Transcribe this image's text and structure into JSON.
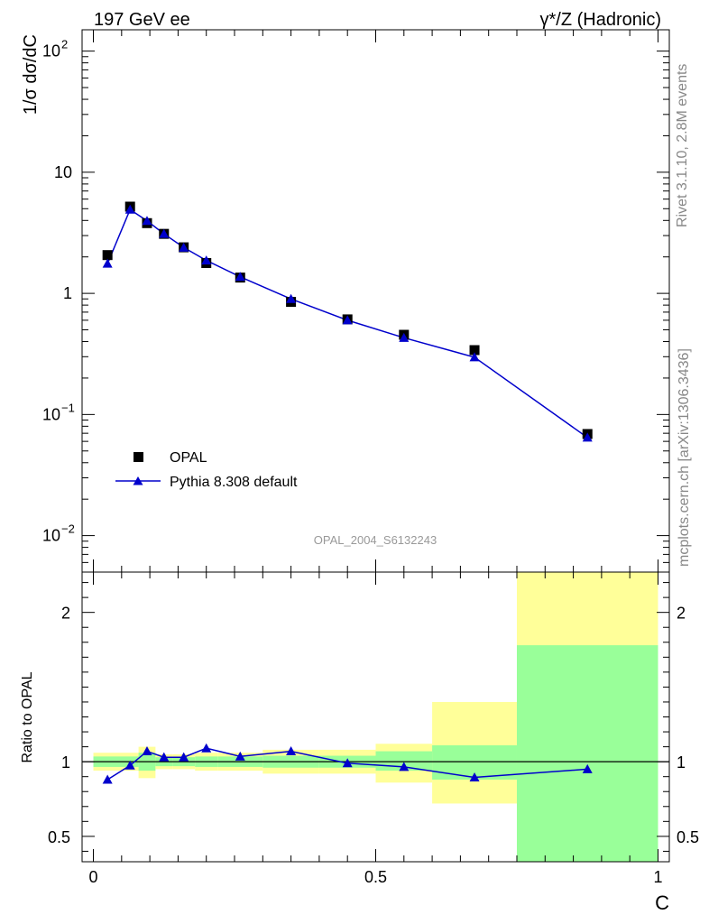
{
  "header": {
    "energy_label": "197 GeV ee",
    "process_label": "γ*/Z (Hadronic)"
  },
  "side": {
    "rivet_label": "Rivet 3.1.10,  2.8M events",
    "source_label": "mcplots.cern.ch [arXiv:1306.3436]"
  },
  "watermark": "OPAL_2004_S6132243",
  "colors": {
    "data": "#000000",
    "mc": "#0000cc",
    "band_inner": "#99ff99",
    "band_outer": "#ffff99",
    "ref_line": "#000000"
  },
  "chart_data": [
    {
      "type": "scatter",
      "title": "",
      "xlabel": "C",
      "ylabel": "1/σ dσ/dC",
      "yscale": "log",
      "xlim": [
        -0.02,
        1.02
      ],
      "ylim": [
        0.005,
        150
      ],
      "yticks": [
        {
          "value": 100,
          "base": "10",
          "exp": "2"
        },
        {
          "value": 10,
          "base": "10",
          "exp": ""
        },
        {
          "value": 1,
          "base": "1",
          "exp": ""
        },
        {
          "value": 0.1,
          "base": "10",
          "exp": "−1"
        },
        {
          "value": 0.01,
          "base": "10",
          "exp": "−2"
        }
      ],
      "legend": {
        "placement": "lower-left",
        "entries": [
          "OPAL",
          "Pythia 8.308 default"
        ]
      },
      "series": [
        {
          "name": "OPAL",
          "marker": "square",
          "x": [
            0.025,
            0.065,
            0.095,
            0.125,
            0.16,
            0.2,
            0.26,
            0.35,
            0.45,
            0.55,
            0.675,
            0.875
          ],
          "y": [
            2.07,
            5.2,
            3.8,
            3.1,
            2.4,
            1.78,
            1.35,
            0.85,
            0.61,
            0.455,
            0.34,
            0.069
          ]
        },
        {
          "name": "Pythia 8.308 default",
          "marker": "triangle",
          "x": [
            0.025,
            0.065,
            0.095,
            0.125,
            0.16,
            0.2,
            0.26,
            0.35,
            0.45,
            0.55,
            0.675,
            0.875
          ],
          "y": [
            1.76,
            4.92,
            3.97,
            3.1,
            2.39,
            1.87,
            1.37,
            0.9,
            0.6,
            0.43,
            0.297,
            0.0645
          ]
        }
      ]
    },
    {
      "type": "line",
      "title": "",
      "xlabel": "C",
      "ylabel": "Ratio to OPAL",
      "xlim": [
        -0.02,
        1.02
      ],
      "ylim": [
        0.33,
        2.27
      ],
      "xticks": [
        0,
        0.5,
        1
      ],
      "xtick_labels": [
        "0",
        "0.5",
        "1"
      ],
      "yticks": [
        0.5,
        1,
        2
      ],
      "ytick_labels": [
        "0.5",
        "1",
        "2"
      ],
      "reference_line": 1,
      "bands": [
        {
          "x0": 0.0,
          "x1": 0.08,
          "inner": [
            0.965,
            1.035
          ],
          "outer": [
            0.94,
            1.06
          ]
        },
        {
          "x0": 0.08,
          "x1": 0.11,
          "inner": [
            0.94,
            1.06
          ],
          "outer": [
            0.89,
            1.1
          ]
        },
        {
          "x0": 0.11,
          "x1": 0.14,
          "inner": [
            0.97,
            1.03
          ],
          "outer": [
            0.95,
            1.05
          ]
        },
        {
          "x0": 0.14,
          "x1": 0.18,
          "inner": [
            0.97,
            1.03
          ],
          "outer": [
            0.95,
            1.05
          ]
        },
        {
          "x0": 0.18,
          "x1": 0.22,
          "inner": [
            0.965,
            1.035
          ],
          "outer": [
            0.94,
            1.06
          ]
        },
        {
          "x0": 0.22,
          "x1": 0.3,
          "inner": [
            0.965,
            1.035
          ],
          "outer": [
            0.94,
            1.06
          ]
        },
        {
          "x0": 0.3,
          "x1": 0.4,
          "inner": [
            0.96,
            1.04
          ],
          "outer": [
            0.92,
            1.08
          ]
        },
        {
          "x0": 0.4,
          "x1": 0.5,
          "inner": [
            0.96,
            1.04
          ],
          "outer": [
            0.92,
            1.08
          ]
        },
        {
          "x0": 0.5,
          "x1": 0.6,
          "inner": [
            0.94,
            1.07
          ],
          "outer": [
            0.86,
            1.12
          ]
        },
        {
          "x0": 0.6,
          "x1": 0.75,
          "inner": [
            0.88,
            1.11
          ],
          "outer": [
            0.72,
            1.4
          ]
        },
        {
          "x0": 0.75,
          "x1": 1.0,
          "inner": [
            0.2,
            1.78
          ],
          "outer": [
            0.2,
            2.28
          ]
        }
      ],
      "series": [
        {
          "name": "Pythia 8.308 default",
          "marker": "triangle",
          "x": [
            0.025,
            0.065,
            0.095,
            0.125,
            0.16,
            0.2,
            0.26,
            0.35,
            0.45,
            0.55,
            0.675,
            0.875
          ],
          "y": [
            0.88,
            0.975,
            1.07,
            1.03,
            1.03,
            1.09,
            1.035,
            1.07,
            0.99,
            0.965,
            0.895,
            0.95
          ]
        }
      ]
    }
  ]
}
